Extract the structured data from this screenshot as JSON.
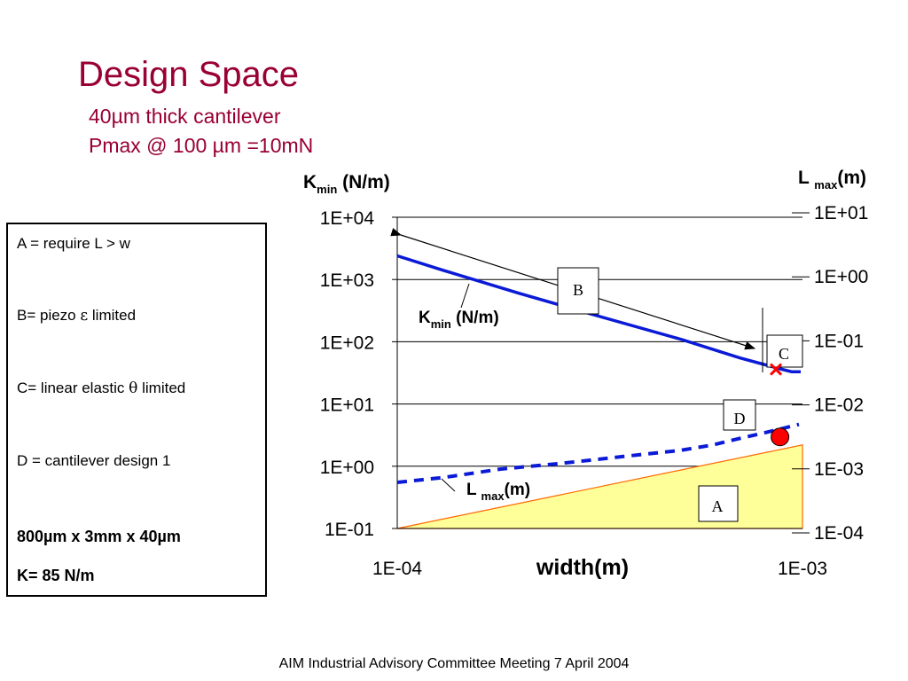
{
  "slide": {
    "title": "Design Space",
    "subtitle_1": "40µm thick cantilever",
    "subtitle_2": "Pmax @ 100 µm =10mN",
    "footer": "AIM Industrial Advisory Committee Meeting 7 April 2004"
  },
  "legend": {
    "a": "A = require L > w",
    "b_prefix": "B= piezo ",
    "b_symbol": "ε",
    "b_suffix": " limited",
    "c_prefix": "C= linear elastic ",
    "c_symbol": "θ",
    "c_suffix": " limited",
    "d": "D = cantilever design 1",
    "design_dims": "800µm x 3mm x 40µm",
    "design_k": "K= 85 N/m"
  },
  "chart_data": {
    "type": "line",
    "x_scale": "log",
    "y_scale": "log",
    "xlabel": "width(m)",
    "x_ticks": [
      "1E-04",
      "1E-03"
    ],
    "xlim": [
      0.0001,
      0.001
    ],
    "left_axis": {
      "label_main": "K",
      "label_sub": "min",
      "label_unit": " (N/m)",
      "ticks": [
        "1E+04",
        "1E+03",
        "1E+02",
        "1E+01",
        "1E+00",
        "1E-01"
      ],
      "ylim": [
        0.1,
        10000
      ]
    },
    "right_axis": {
      "label_main": "L ",
      "label_sub": "max",
      "label_unit": "(m)",
      "ticks": [
        "1E+01",
        "1E+00",
        "1E-01",
        "1E-02",
        "1E-03",
        "1E-04"
      ],
      "ylim": [
        0.0001,
        10
      ]
    },
    "grid": true,
    "series": [
      {
        "name_main": "K",
        "name_sub": "min",
        "name_unit": " (N/m)",
        "axis": "left",
        "style": "solid",
        "color": "#0a1ad6",
        "x": [
          0.0001,
          0.00013,
          0.0002,
          0.0003,
          0.0005,
          0.0007,
          0.00089,
          0.00094,
          0.00099
        ],
        "y": [
          2400,
          1400,
          600,
          280,
          110,
          55,
          36,
          33,
          33
        ]
      },
      {
        "name_main": "L ",
        "name_sub": "max",
        "name_unit": "(m)",
        "axis": "right",
        "style": "dashed",
        "color": "#0a1ad6",
        "x": [
          0.0001,
          0.00013,
          0.00018,
          0.00025,
          0.00035,
          0.0005,
          0.0006,
          0.0007,
          0.0008,
          0.0009,
          0.00098
        ],
        "y": [
          0.00055,
          0.00066,
          0.0009,
          0.0011,
          0.0014,
          0.0018,
          0.0022,
          0.0028,
          0.0034,
          0.0041,
          0.0047
        ]
      }
    ],
    "region_a": {
      "label": "A",
      "color": "#ffff99",
      "edge_color": "#ff6600",
      "points_x": [
        0.0001,
        0.001,
        0.001
      ],
      "points_y_right": [
        0.0001,
        0.0001,
        0.0022
      ]
    },
    "annotations": {
      "B": "B",
      "C": "C",
      "D": "D",
      "A": "A",
      "design_point": {
        "x": 0.00088,
        "y_right": 0.0036,
        "color": "#ff0000"
      },
      "limit_cross": {
        "x": 0.00086,
        "y_left": 36,
        "color": "#ff0000"
      }
    }
  }
}
